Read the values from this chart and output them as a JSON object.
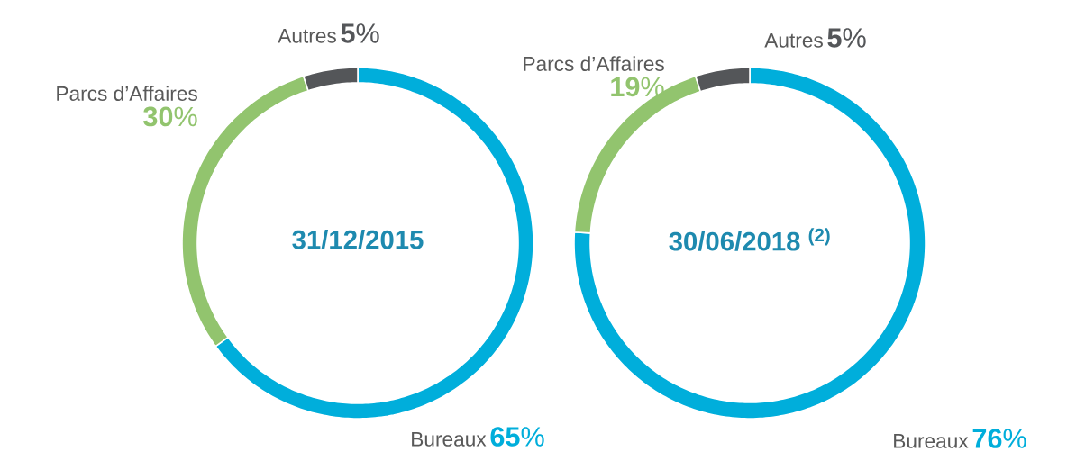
{
  "chart_data": [
    {
      "type": "donut",
      "title": "31/12/2015",
      "categories": [
        "Bureaux",
        "Parcs d’Affaires",
        "Autres"
      ],
      "values": [
        65,
        30,
        5
      ],
      "colors": [
        "#00aedb",
        "#92c46e",
        "#545659"
      ],
      "value_labels": [
        "**65**%",
        "**30**%",
        "**5**%"
      ]
    },
    {
      "type": "donut",
      "title": "30/06/2018 $^{(2)}$",
      "categories": [
        "Bureaux",
        "Parcs d’Affaires",
        "Autres"
      ],
      "values": [
        76,
        19,
        5
      ],
      "colors": [
        "#00aedb",
        "#92c46e",
        "#545659"
      ],
      "value_labels": [
        "**76**%",
        "**19**%",
        "**5**%"
      ]
    }
  ]
}
